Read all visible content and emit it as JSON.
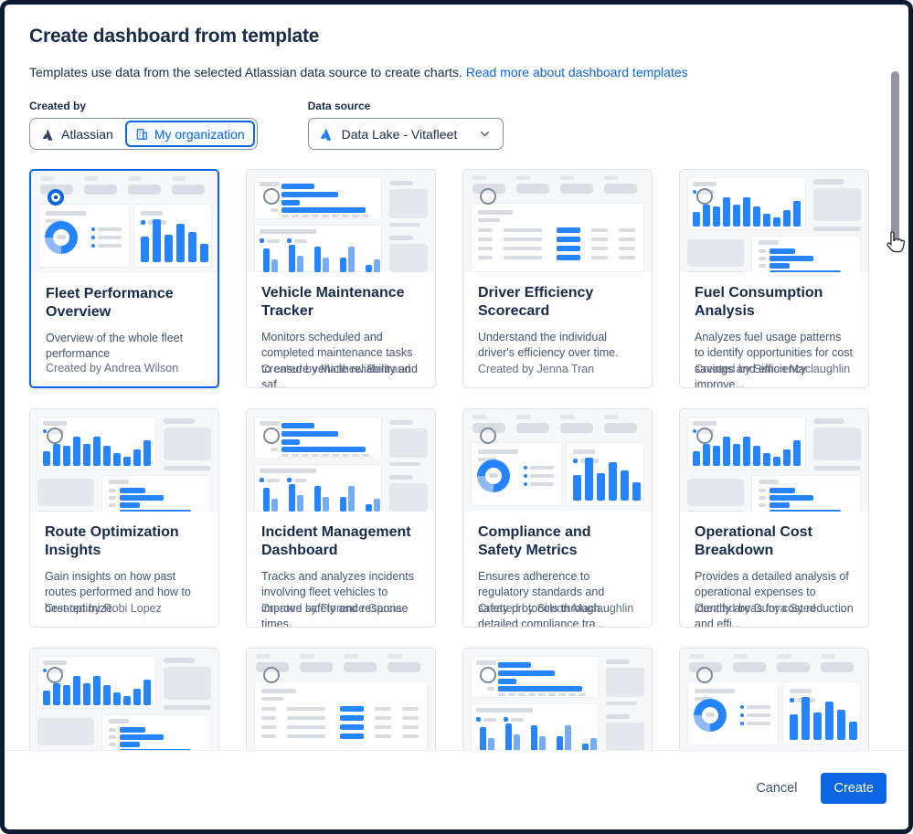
{
  "dialog": {
    "title": "Create dashboard from template",
    "description": "Templates use data from the selected Atlassian data source to create charts.",
    "link_text": "Read more about dashboard templates"
  },
  "filters": {
    "created_by": {
      "label": "Created by",
      "options": [
        {
          "label": "Atlassian",
          "selected": false
        },
        {
          "label": "My organization",
          "selected": true
        }
      ]
    },
    "data_source": {
      "label": "Data source",
      "value": "Data Lake - Vitafleet"
    }
  },
  "cards": [
    {
      "title": "Fleet Performance Overview",
      "description": "Overview of the whole fleet performance",
      "author": "Created by Andrea Wilson",
      "thumb": "donut-bars",
      "selected": true
    },
    {
      "title": "Vehicle Maintenance Tracker",
      "description": "Monitors scheduled and completed maintenance tasks to ensure vehicle reliability and saf...",
      "author": "Created by Matthew Bertrand",
      "thumb": "hbars-groups",
      "selected": false
    },
    {
      "title": "Driver Efficiency Scorecard",
      "description": "Understand the individual driver's efficiency over time.",
      "author": "Created by Jenna Tran",
      "thumb": "table",
      "selected": false
    },
    {
      "title": "Fuel Consumption Analysis",
      "description": "Analyzes fuel usage patterns to identify opportunities for cost savings and efficiency improve...",
      "author": "Created by Simon Maclaughlin",
      "thumb": "vbars-hbars",
      "selected": false
    },
    {
      "title": "Route Optimization Insights",
      "description": "Gain insights on how past routes performed and how to best optimize.",
      "author": "Created by Robi Lopez",
      "thumb": "vbars-hbars",
      "selected": false
    },
    {
      "title": "Incident Management Dashboard",
      "description": "Tracks and analyzes incidents involving fleet vehicles to improve safety and response times.",
      "author": "Created by Florence Garcia",
      "thumb": "hbars-groups",
      "selected": false
    },
    {
      "title": "Compliance and Safety Metrics",
      "description": "Ensures adherence to regulatory standards and safety protocols through detailed compliance tra...",
      "author": "Created by Simon Maclaughlin",
      "thumb": "donut-bars",
      "selected": false
    },
    {
      "title": "Operational Cost Breakdown",
      "description": "Provides a detailed analysis of operational expenses to identify areas for cost reduction and effi...",
      "author": "Created by Dunya Syed",
      "thumb": "vbars-hbars",
      "selected": false
    },
    {
      "title": "",
      "description": "",
      "author": "",
      "thumb": "vbars-hbars",
      "selected": false
    },
    {
      "title": "",
      "description": "",
      "author": "",
      "thumb": "table",
      "selected": false
    },
    {
      "title": "",
      "description": "",
      "author": "",
      "thumb": "hbars-groups",
      "selected": false
    },
    {
      "title": "",
      "description": "",
      "author": "",
      "thumb": "donut-bars",
      "selected": false
    }
  ],
  "footer": {
    "cancel_label": "Cancel",
    "create_label": "Create"
  },
  "colors": {
    "accent": "#0C66E4",
    "chart_blue": "#2684FF",
    "chart_blue_light": "#76ABF8",
    "selected_card_border": "#0C66E4",
    "frame_border": "#0D1B33"
  }
}
